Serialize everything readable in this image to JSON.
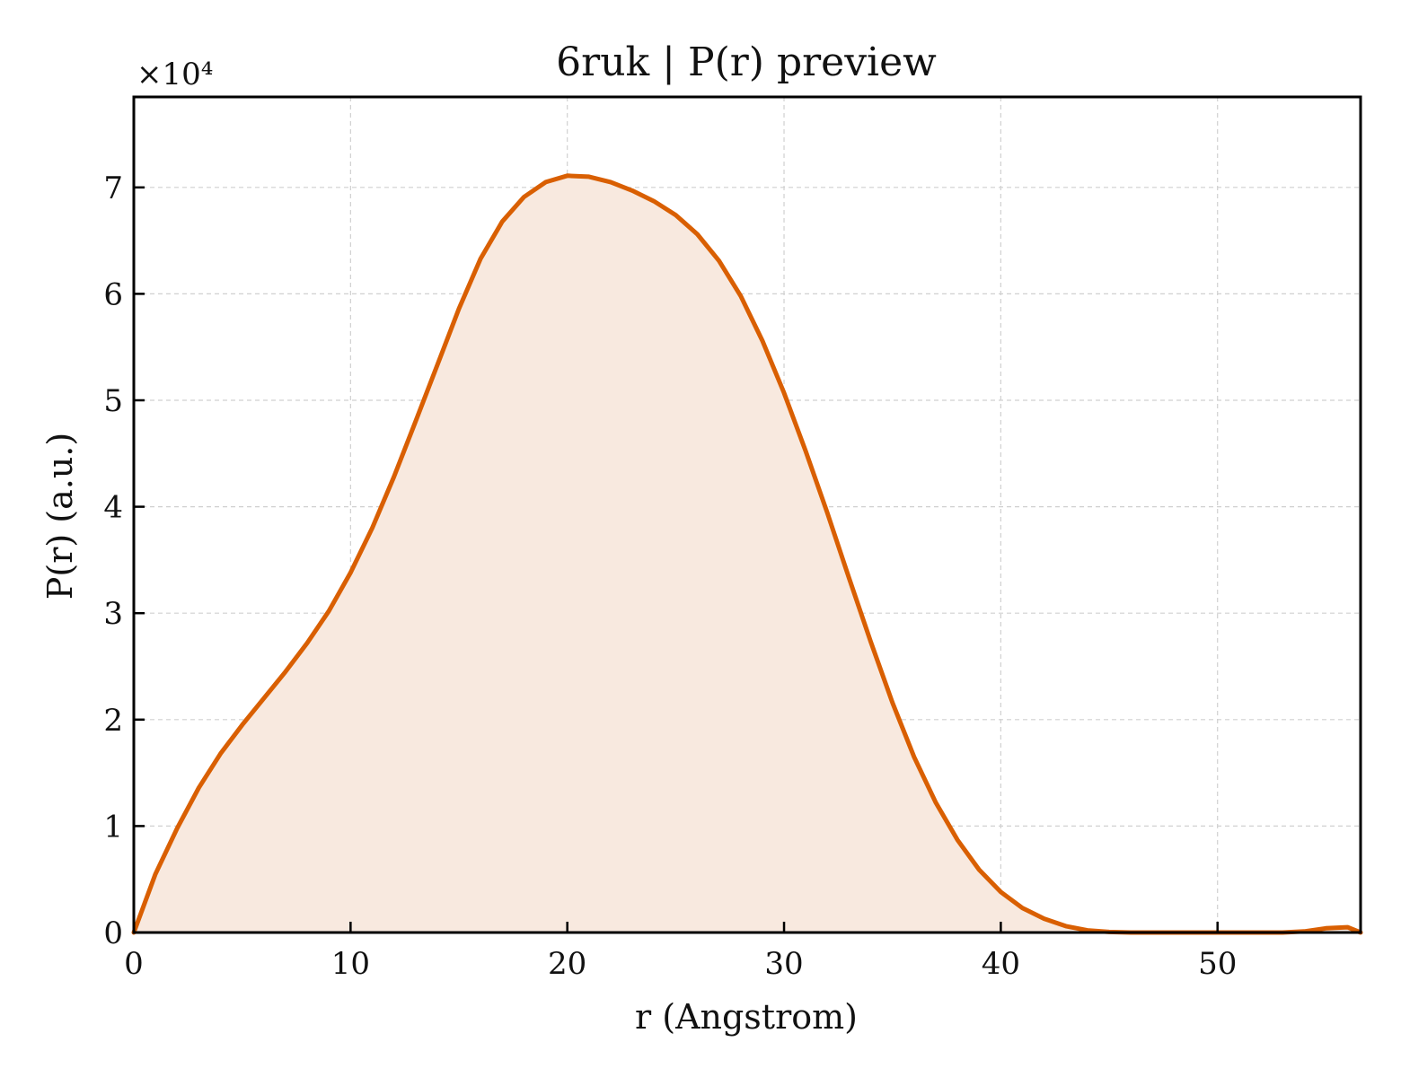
{
  "chart_data": {
    "type": "area",
    "title": "6ruk | P(r) preview",
    "xlabel": "r (Angstrom)",
    "ylabel": "P(r) (a.u.)",
    "y_multiplier_label": "×10⁴",
    "y_scale": 10000,
    "xlim": [
      0,
      56.6
    ],
    "ylim": [
      0,
      78500
    ],
    "xticks": [
      0,
      10,
      20,
      30,
      40,
      50
    ],
    "yticks": [
      0,
      10000,
      20000,
      30000,
      40000,
      50000,
      60000,
      70000
    ],
    "ytick_labels": [
      "0",
      "1",
      "2",
      "3",
      "4",
      "5",
      "6",
      "7"
    ],
    "grid": true,
    "colors": {
      "line": "#d95f02",
      "fill": "#f8e9df",
      "grid": "#d0d0d0"
    },
    "series": [
      {
        "x": [
          0,
          1,
          2,
          3,
          4,
          5,
          6,
          7,
          8,
          9,
          10,
          11,
          12,
          13,
          14,
          15,
          16,
          17,
          18,
          19,
          20,
          21,
          22,
          23,
          24,
          25,
          26,
          27,
          28,
          29,
          30,
          31,
          32,
          33,
          34,
          35,
          36,
          37,
          38,
          39,
          40,
          41,
          42,
          43,
          44,
          45,
          46,
          47,
          48,
          49,
          50,
          51,
          52,
          53,
          54,
          55,
          56,
          56.6
        ],
        "y": [
          0,
          5500,
          9800,
          13600,
          16800,
          19500,
          22000,
          24500,
          27200,
          30200,
          33800,
          38000,
          42800,
          48000,
          53300,
          58600,
          63300,
          66800,
          69100,
          70500,
          71100,
          71000,
          70500,
          69700,
          68700,
          67400,
          65600,
          63100,
          59800,
          55600,
          50700,
          45200,
          39400,
          33300,
          27300,
          21600,
          16500,
          12200,
          8700,
          5900,
          3800,
          2300,
          1300,
          600,
          200,
          50,
          0,
          0,
          0,
          0,
          0,
          0,
          0,
          0,
          100,
          400,
          500,
          0
        ],
        "y_note": "same values as drawn; shifted grid below"
      }
    ]
  }
}
